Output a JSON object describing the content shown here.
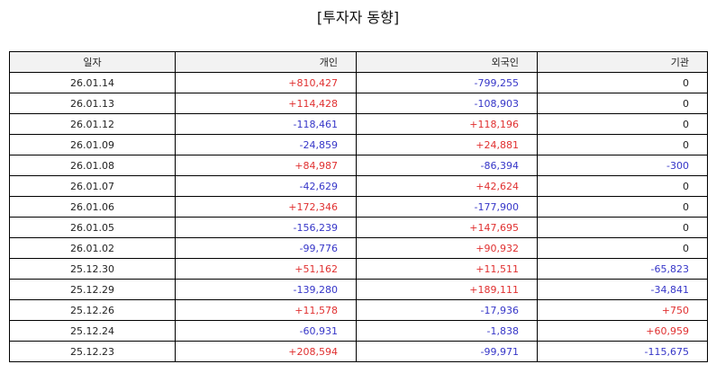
{
  "title": "[투자자 동향]",
  "columns": [
    "일자",
    "개인",
    "외국인",
    "기관"
  ],
  "colors": {
    "positive": "#e03030",
    "negative": "#3636c8",
    "zero": "#222222"
  },
  "rows": [
    [
      "26.01.14",
      "+810,427",
      "-799,255",
      "0"
    ],
    [
      "26.01.13",
      "+114,428",
      "-108,903",
      "0"
    ],
    [
      "26.01.12",
      "-118,461",
      "+118,196",
      "0"
    ],
    [
      "26.01.09",
      "-24,859",
      "+24,881",
      "0"
    ],
    [
      "26.01.08",
      "+84,987",
      "-86,394",
      "-300"
    ],
    [
      "26.01.07",
      "-42,629",
      "+42,624",
      "0"
    ],
    [
      "26.01.06",
      "+172,346",
      "-177,900",
      "0"
    ],
    [
      "26.01.05",
      "-156,239",
      "+147,695",
      "0"
    ],
    [
      "26.01.02",
      "-99,776",
      "+90,932",
      "0"
    ],
    [
      "25.12.30",
      "+51,162",
      "+11,511",
      "-65,823"
    ],
    [
      "25.12.29",
      "-139,280",
      "+189,111",
      "-34,841"
    ],
    [
      "25.12.26",
      "+11,578",
      "-17,936",
      "+750"
    ],
    [
      "25.12.24",
      "-60,931",
      "-1,838",
      "+60,959"
    ],
    [
      "25.12.23",
      "+208,594",
      "-99,971",
      "-115,675"
    ]
  ]
}
